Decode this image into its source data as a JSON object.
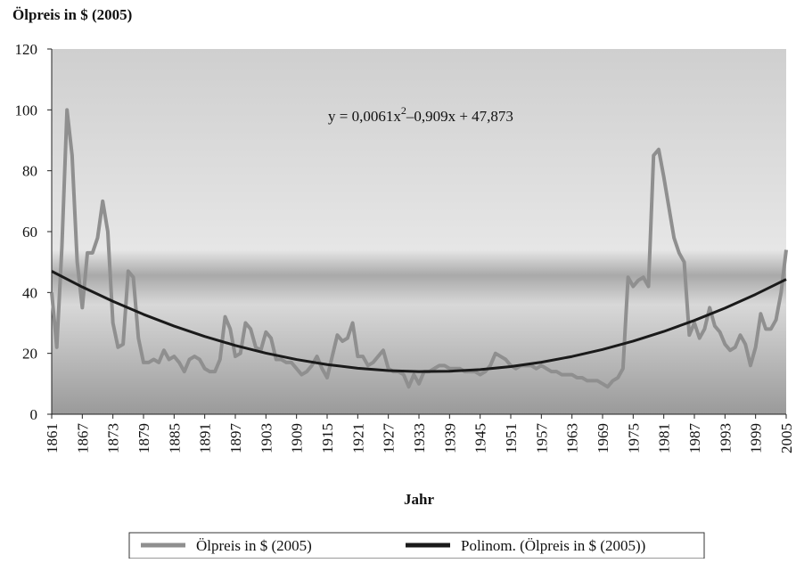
{
  "chart_data": {
    "type": "line",
    "title": "Ölpreis in $ (2005)",
    "x_label": "Jahr",
    "equation": {
      "before": "y = 0,0061x",
      "sup": "2",
      "after": "–0,909x + 47,873"
    },
    "xlim": [
      1861,
      2005
    ],
    "xticks": [
      1861,
      1867,
      1873,
      1879,
      1885,
      1891,
      1897,
      1903,
      1909,
      1915,
      1921,
      1927,
      1933,
      1939,
      1945,
      1951,
      1957,
      1963,
      1969,
      1975,
      1981,
      1987,
      1993,
      1999,
      2005
    ],
    "ylim": [
      0,
      120
    ],
    "yticks": [
      0,
      20,
      40,
      60,
      80,
      100,
      120
    ],
    "series": [
      {
        "name": "Ölpreis in $ (2005)",
        "color": "#8f8f8f",
        "x": [
          1861,
          1862,
          1863,
          1864,
          1865,
          1866,
          1867,
          1868,
          1869,
          1870,
          1871,
          1872,
          1873,
          1874,
          1875,
          1876,
          1877,
          1878,
          1879,
          1880,
          1881,
          1882,
          1883,
          1884,
          1885,
          1886,
          1887,
          1888,
          1889,
          1890,
          1891,
          1892,
          1893,
          1894,
          1895,
          1896,
          1897,
          1898,
          1899,
          1900,
          1901,
          1902,
          1903,
          1904,
          1905,
          1906,
          1907,
          1908,
          1909,
          1910,
          1911,
          1912,
          1913,
          1914,
          1915,
          1916,
          1917,
          1918,
          1919,
          1920,
          1921,
          1922,
          1923,
          1924,
          1925,
          1926,
          1927,
          1928,
          1929,
          1930,
          1931,
          1932,
          1933,
          1934,
          1935,
          1936,
          1937,
          1938,
          1939,
          1940,
          1941,
          1942,
          1943,
          1944,
          1945,
          1946,
          1947,
          1948,
          1949,
          1950,
          1951,
          1952,
          1953,
          1954,
          1955,
          1956,
          1957,
          1958,
          1959,
          1960,
          1961,
          1962,
          1963,
          1964,
          1965,
          1966,
          1967,
          1968,
          1969,
          1970,
          1971,
          1972,
          1973,
          1974,
          1975,
          1976,
          1977,
          1978,
          1979,
          1980,
          1981,
          1982,
          1983,
          1984,
          1985,
          1986,
          1987,
          1988,
          1989,
          1990,
          1991,
          1992,
          1993,
          1994,
          1995,
          1996,
          1997,
          1998,
          1999,
          2000,
          2001,
          2002,
          2003,
          2004,
          2005
        ],
        "values": [
          40,
          22,
          55,
          100,
          85,
          50,
          35,
          53,
          53,
          58,
          70,
          60,
          30,
          22,
          23,
          47,
          45,
          25,
          17,
          17,
          18,
          17,
          21,
          18,
          19,
          17,
          14,
          18,
          19,
          18,
          15,
          14,
          14,
          18,
          32,
          28,
          19,
          20,
          30,
          28,
          22,
          21,
          27,
          25,
          18,
          18,
          17,
          17,
          15,
          13,
          14,
          16,
          19,
          15,
          12,
          19,
          26,
          24,
          25,
          30,
          19,
          19,
          16,
          17,
          19,
          21,
          15,
          14,
          14,
          13,
          9,
          13,
          10,
          14,
          14,
          15,
          16,
          16,
          15,
          15,
          15,
          14,
          14,
          14,
          13,
          14,
          16,
          20,
          19,
          18,
          16,
          15,
          16,
          16,
          16,
          15,
          16,
          15,
          14,
          14,
          13,
          13,
          13,
          12,
          12,
          11,
          11,
          11,
          10,
          9,
          11,
          12,
          15,
          45,
          42,
          44,
          45,
          42,
          85,
          87,
          78,
          68,
          58,
          53,
          50,
          26,
          30,
          25,
          28,
          35,
          29,
          27,
          23,
          21,
          22,
          26,
          23,
          16,
          22,
          33,
          28,
          28,
          31,
          40,
          54
        ]
      },
      {
        "name": "Polinom. (Ölpreis in $ (2005))",
        "color": "#1a1a1a",
        "x": [
          1861,
          1867,
          1873,
          1879,
          1885,
          1891,
          1897,
          1903,
          1909,
          1915,
          1921,
          1927,
          1933,
          1939,
          1945,
          1951,
          1957,
          1963,
          1969,
          1975,
          1981,
          1987,
          1993,
          1999,
          2005
        ],
        "values": [
          46.97,
          41.81,
          37.09,
          32.8,
          28.96,
          25.56,
          22.59,
          20.06,
          17.98,
          16.33,
          15.12,
          14.35,
          14.02,
          14.13,
          14.68,
          15.67,
          17.09,
          18.96,
          21.27,
          24.01,
          27.19,
          30.82,
          34.88,
          39.38,
          44.32
        ]
      }
    ]
  }
}
